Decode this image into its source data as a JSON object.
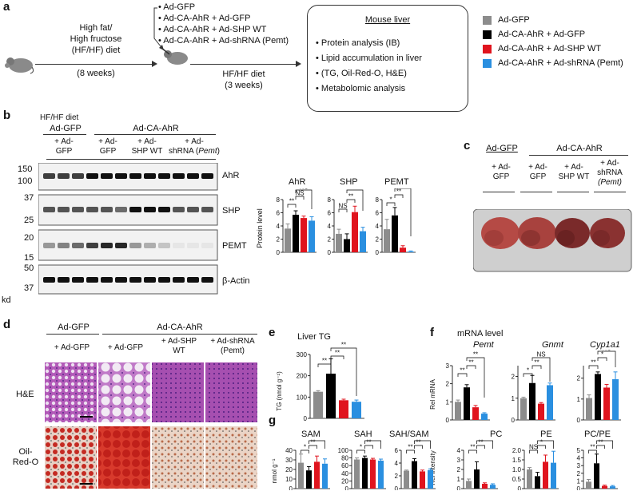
{
  "colors": {
    "gfp": "#8c8c8c",
    "ahr": "#000000",
    "shp": "#e0141e",
    "shrna": "#2a8fe0"
  },
  "panel_a": {
    "label": "a",
    "diet_text": [
      "High fat/",
      "High fructose",
      "(HF/HF) diet"
    ],
    "weeks8": "(8 weeks)",
    "injections": [
      "• Ad-GFP",
      "• Ad-CA-AhR + Ad-GFP",
      "• Ad-CA-AhR + Ad-SHP WT",
      "• Ad-CA-AhR + Ad-shRNA (Pemt)"
    ],
    "diet2": "HF/HF diet",
    "weeks3": "(3 weeks)",
    "box_title": "Mouse liver",
    "box_items": [
      "Protein analysis (IB)",
      "Lipid accumulation in liver",
      "(TG, Oil-Red-O, H&E)",
      "Metabolomic analysis"
    ],
    "legend": [
      {
        "label": "Ad-GFP",
        "color": "#8c8c8c"
      },
      {
        "label": "Ad-CA-AhR + Ad-GFP",
        "color": "#000000"
      },
      {
        "label": "Ad-CA-AhR + Ad-SHP WT",
        "color": "#e0141e"
      },
      {
        "label": "Ad-CA-AhR + Ad-shRNA (Pemt)",
        "color": "#2a8fe0"
      }
    ]
  },
  "panel_b": {
    "label": "b",
    "diet": "HF/HF diet",
    "grp1": "Ad-GFP",
    "grp2": "Ad-CA-AhR",
    "lanes": [
      "+ Ad-",
      "GFP",
      "+ Ad-",
      "GFP",
      "+ Ad-",
      "SHP WT",
      "+ Ad-",
      "shRNA (",
      "Pemt",
      ")"
    ],
    "markers": [
      "150",
      "100",
      "37",
      "25",
      "20",
      "15",
      "50",
      "37"
    ],
    "kd": "kd",
    "blots": [
      "AhR",
      "SHP",
      "PEMT",
      "β-Actin"
    ],
    "chart_ylabel": "Protein level",
    "yticks": [
      "0",
      "2",
      "4",
      "6",
      "8"
    ],
    "sig": [
      "**",
      "NS",
      "NS",
      "NS",
      "**",
      "*",
      "**",
      "**"
    ]
  },
  "panel_c": {
    "label": "c",
    "grp1": "Ad-GFP",
    "grp2": "Ad-CA-AhR",
    "lanes": [
      "+ Ad-",
      "GFP",
      "+ Ad-",
      "GFP",
      "+ Ad-",
      "SHP WT",
      "+ Ad-",
      "shRNA",
      "(Pemt)"
    ]
  },
  "panel_d": {
    "label": "d",
    "grp1": "Ad-GFP",
    "grp2": "Ad-CA-AhR",
    "cols": [
      "+ Ad-GFP",
      "+ Ad-GFP",
      "+ Ad-SHP",
      "WT",
      "+ Ad-shRNA",
      "(Pemt)"
    ],
    "rows": [
      "H&E",
      "Oil-",
      "Red-O"
    ]
  },
  "panel_e": {
    "label": "e",
    "ylabel": "TG (nmol g⁻¹)",
    "yticks": [
      "0",
      "100",
      "200",
      "300"
    ],
    "sig": [
      "**",
      "**",
      "**"
    ]
  },
  "panel_f": {
    "label": "f",
    "title": "mRNA level",
    "ylabel": "Rel mRNA",
    "yticks1": [
      "0",
      "1",
      "2",
      "3"
    ],
    "yticks2": [
      "0",
      "1",
      "2"
    ],
    "yticks3": [
      "0",
      "1",
      "2"
    ],
    "sig": [
      "**",
      "**",
      "**",
      "*",
      "**",
      "NS",
      "**",
      "*",
      "NS"
    ]
  },
  "panel_g": {
    "label": "g",
    "ylabel_nmol": "nmol g⁻¹",
    "ylabel_rel": "Rel intensity",
    "yt_sam": [
      "0",
      "10",
      "20",
      "30",
      "40"
    ],
    "yt_sah": [
      "0",
      "20",
      "40",
      "60",
      "80",
      "100"
    ],
    "yt_ratio": [
      "0",
      "2",
      "4",
      "6"
    ],
    "yt_pc": [
      "0",
      "1",
      "2",
      "3",
      "4"
    ],
    "yt_pe": [
      "0",
      "0.5",
      "1.0",
      "1.5",
      "2.0"
    ],
    "yt_pcpe": [
      "0",
      "1",
      "2",
      "3",
      "4",
      "5"
    ],
    "sig_common": "*",
    "sig_double": "**",
    "sig_ns": "NS"
  },
  "chart_data": [
    {
      "type": "bar",
      "categories": [
        "Ad-GFP",
        "Ad-CA-AhR + Ad-GFP",
        "Ad-CA-AhR + Ad-SHP WT",
        "Ad-CA-AhR + Ad-shRNA (Pemt)"
      ],
      "series": [
        {
          "name": "AhR",
          "values": [
            3.6,
            5.7,
            5.2,
            4.8
          ],
          "err": [
            0.7,
            0.6,
            0.3,
            0.6
          ]
        },
        {
          "name": "SHP",
          "values": [
            2.8,
            2.0,
            6.1,
            3.2
          ],
          "err": [
            0.7,
            0.8,
            0.9,
            0.6
          ]
        },
        {
          "name": "PEMT",
          "values": [
            3.5,
            5.6,
            0.7,
            0.1
          ],
          "err": [
            1.5,
            1.2,
            0.3,
            0.1
          ]
        }
      ],
      "ylabel": "Protein level",
      "ylim": [
        0,
        8
      ]
    },
    {
      "type": "bar",
      "title": "Liver TG",
      "categories": [
        "Ad-GFP",
        "Ad-CA-AhR + Ad-GFP",
        "Ad-CA-AhR + Ad-SHP WT",
        "Ad-CA-AhR + Ad-shRNA (Pemt)"
      ],
      "values": [
        125,
        210,
        85,
        78
      ],
      "err": [
        5,
        70,
        5,
        8
      ],
      "ylabel": "TG (nmol g⁻¹)",
      "ylim": [
        0,
        300
      ]
    },
    {
      "type": "bar",
      "title": "mRNA level",
      "categories": [
        "Ad-GFP",
        "Ad-CA-AhR + Ad-GFP",
        "Ad-CA-AhR + Ad-SHP WT",
        "Ad-CA-AhR + Ad-shRNA (Pemt)"
      ],
      "series": [
        {
          "name": "Pemt",
          "values": [
            1.0,
            1.8,
            0.7,
            0.35
          ],
          "err": [
            0.1,
            0.15,
            0.1,
            0.05
          ],
          "ylim": [
            0,
            3
          ]
        },
        {
          "name": "Gnmt",
          "values": [
            1.0,
            1.7,
            0.75,
            1.6
          ],
          "err": [
            0.05,
            0.35,
            0.05,
            0.1
          ],
          "ylim": [
            0,
            2.5
          ]
        },
        {
          "name": "Cyp1a1",
          "values": [
            1.05,
            2.2,
            1.55,
            1.95
          ],
          "err": [
            0.15,
            0.1,
            0.15,
            0.35
          ],
          "ylim": [
            0,
            2.6
          ]
        }
      ],
      "ylabel": "Rel mRNA"
    },
    {
      "type": "bar",
      "categories": [
        "Ad-GFP",
        "Ad-CA-AhR + Ad-GFP",
        "Ad-CA-AhR + Ad-SHP WT",
        "Ad-CA-AhR + Ad-shRNA (Pemt)"
      ],
      "series": [
        {
          "name": "SAM",
          "values": [
            27,
            19,
            28,
            26
          ],
          "err": [
            9,
            4,
            6,
            5
          ],
          "ylim": [
            0,
            40
          ]
        },
        {
          "name": "SAH",
          "values": [
            76,
            80,
            76,
            73
          ],
          "err": [
            4,
            5,
            3,
            4
          ],
          "ylim": [
            0,
            100
          ]
        },
        {
          "name": "SAH/SAM",
          "values": [
            2.8,
            4.3,
            2.7,
            2.9
          ],
          "err": [
            0.1,
            0.4,
            0.2,
            0.2
          ],
          "ylim": [
            0,
            6
          ]
        },
        {
          "name": "PC",
          "values": [
            0.8,
            2.0,
            0.5,
            0.4
          ],
          "err": [
            0.2,
            0.8,
            0.1,
            0.1
          ],
          "ylim": [
            0,
            4
          ]
        },
        {
          "name": "PE",
          "values": [
            1.0,
            0.65,
            1.4,
            1.35
          ],
          "err": [
            0.1,
            0.2,
            0.35,
            0.6
          ],
          "ylim": [
            0,
            2
          ]
        },
        {
          "name": "PC/PE",
          "values": [
            0.9,
            3.3,
            0.35,
            0.3
          ],
          "err": [
            0.3,
            1.2,
            0.1,
            0.1
          ],
          "ylim": [
            0,
            5
          ]
        }
      ]
    }
  ]
}
